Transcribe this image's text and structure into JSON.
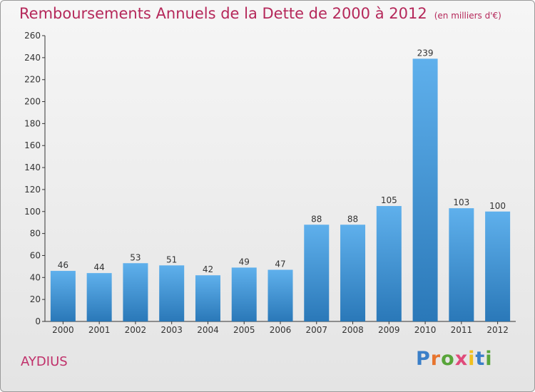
{
  "header": {
    "title": "Remboursements Annuels de la Dette de 2000 à 2012",
    "subtitle": "(en milliers d'€)"
  },
  "footer": {
    "commune": "AYDIUS",
    "logo": {
      "letters": [
        "P",
        "r",
        "o",
        "x",
        "i",
        "t",
        "i"
      ],
      "colors": [
        "#3a7fc8",
        "#e7742e",
        "#58a53a",
        "#e04a7a",
        "#f0c020",
        "#3a7fc8",
        "#58a53a"
      ]
    }
  },
  "chart_data": {
    "type": "bar",
    "title": "Remboursements Annuels de la Dette de 2000 à 2012",
    "subtitle": "(en milliers d'€)",
    "xlabel": "",
    "ylabel": "",
    "categories": [
      "2000",
      "2001",
      "2002",
      "2003",
      "2004",
      "2005",
      "2006",
      "2007",
      "2008",
      "2009",
      "2010",
      "2011",
      "2012"
    ],
    "values": [
      46,
      44,
      53,
      51,
      42,
      49,
      47,
      88,
      88,
      105,
      239,
      103,
      100
    ],
    "ylim": [
      0,
      260
    ],
    "yticks": [
      0,
      20,
      40,
      60,
      80,
      100,
      120,
      140,
      160,
      180,
      200,
      220,
      240,
      260
    ],
    "grid": false,
    "legend": "none",
    "colors": {
      "bar_light": "#5fb0ec",
      "bar_dark": "#2a78b8",
      "title": "#b5285a"
    }
  }
}
